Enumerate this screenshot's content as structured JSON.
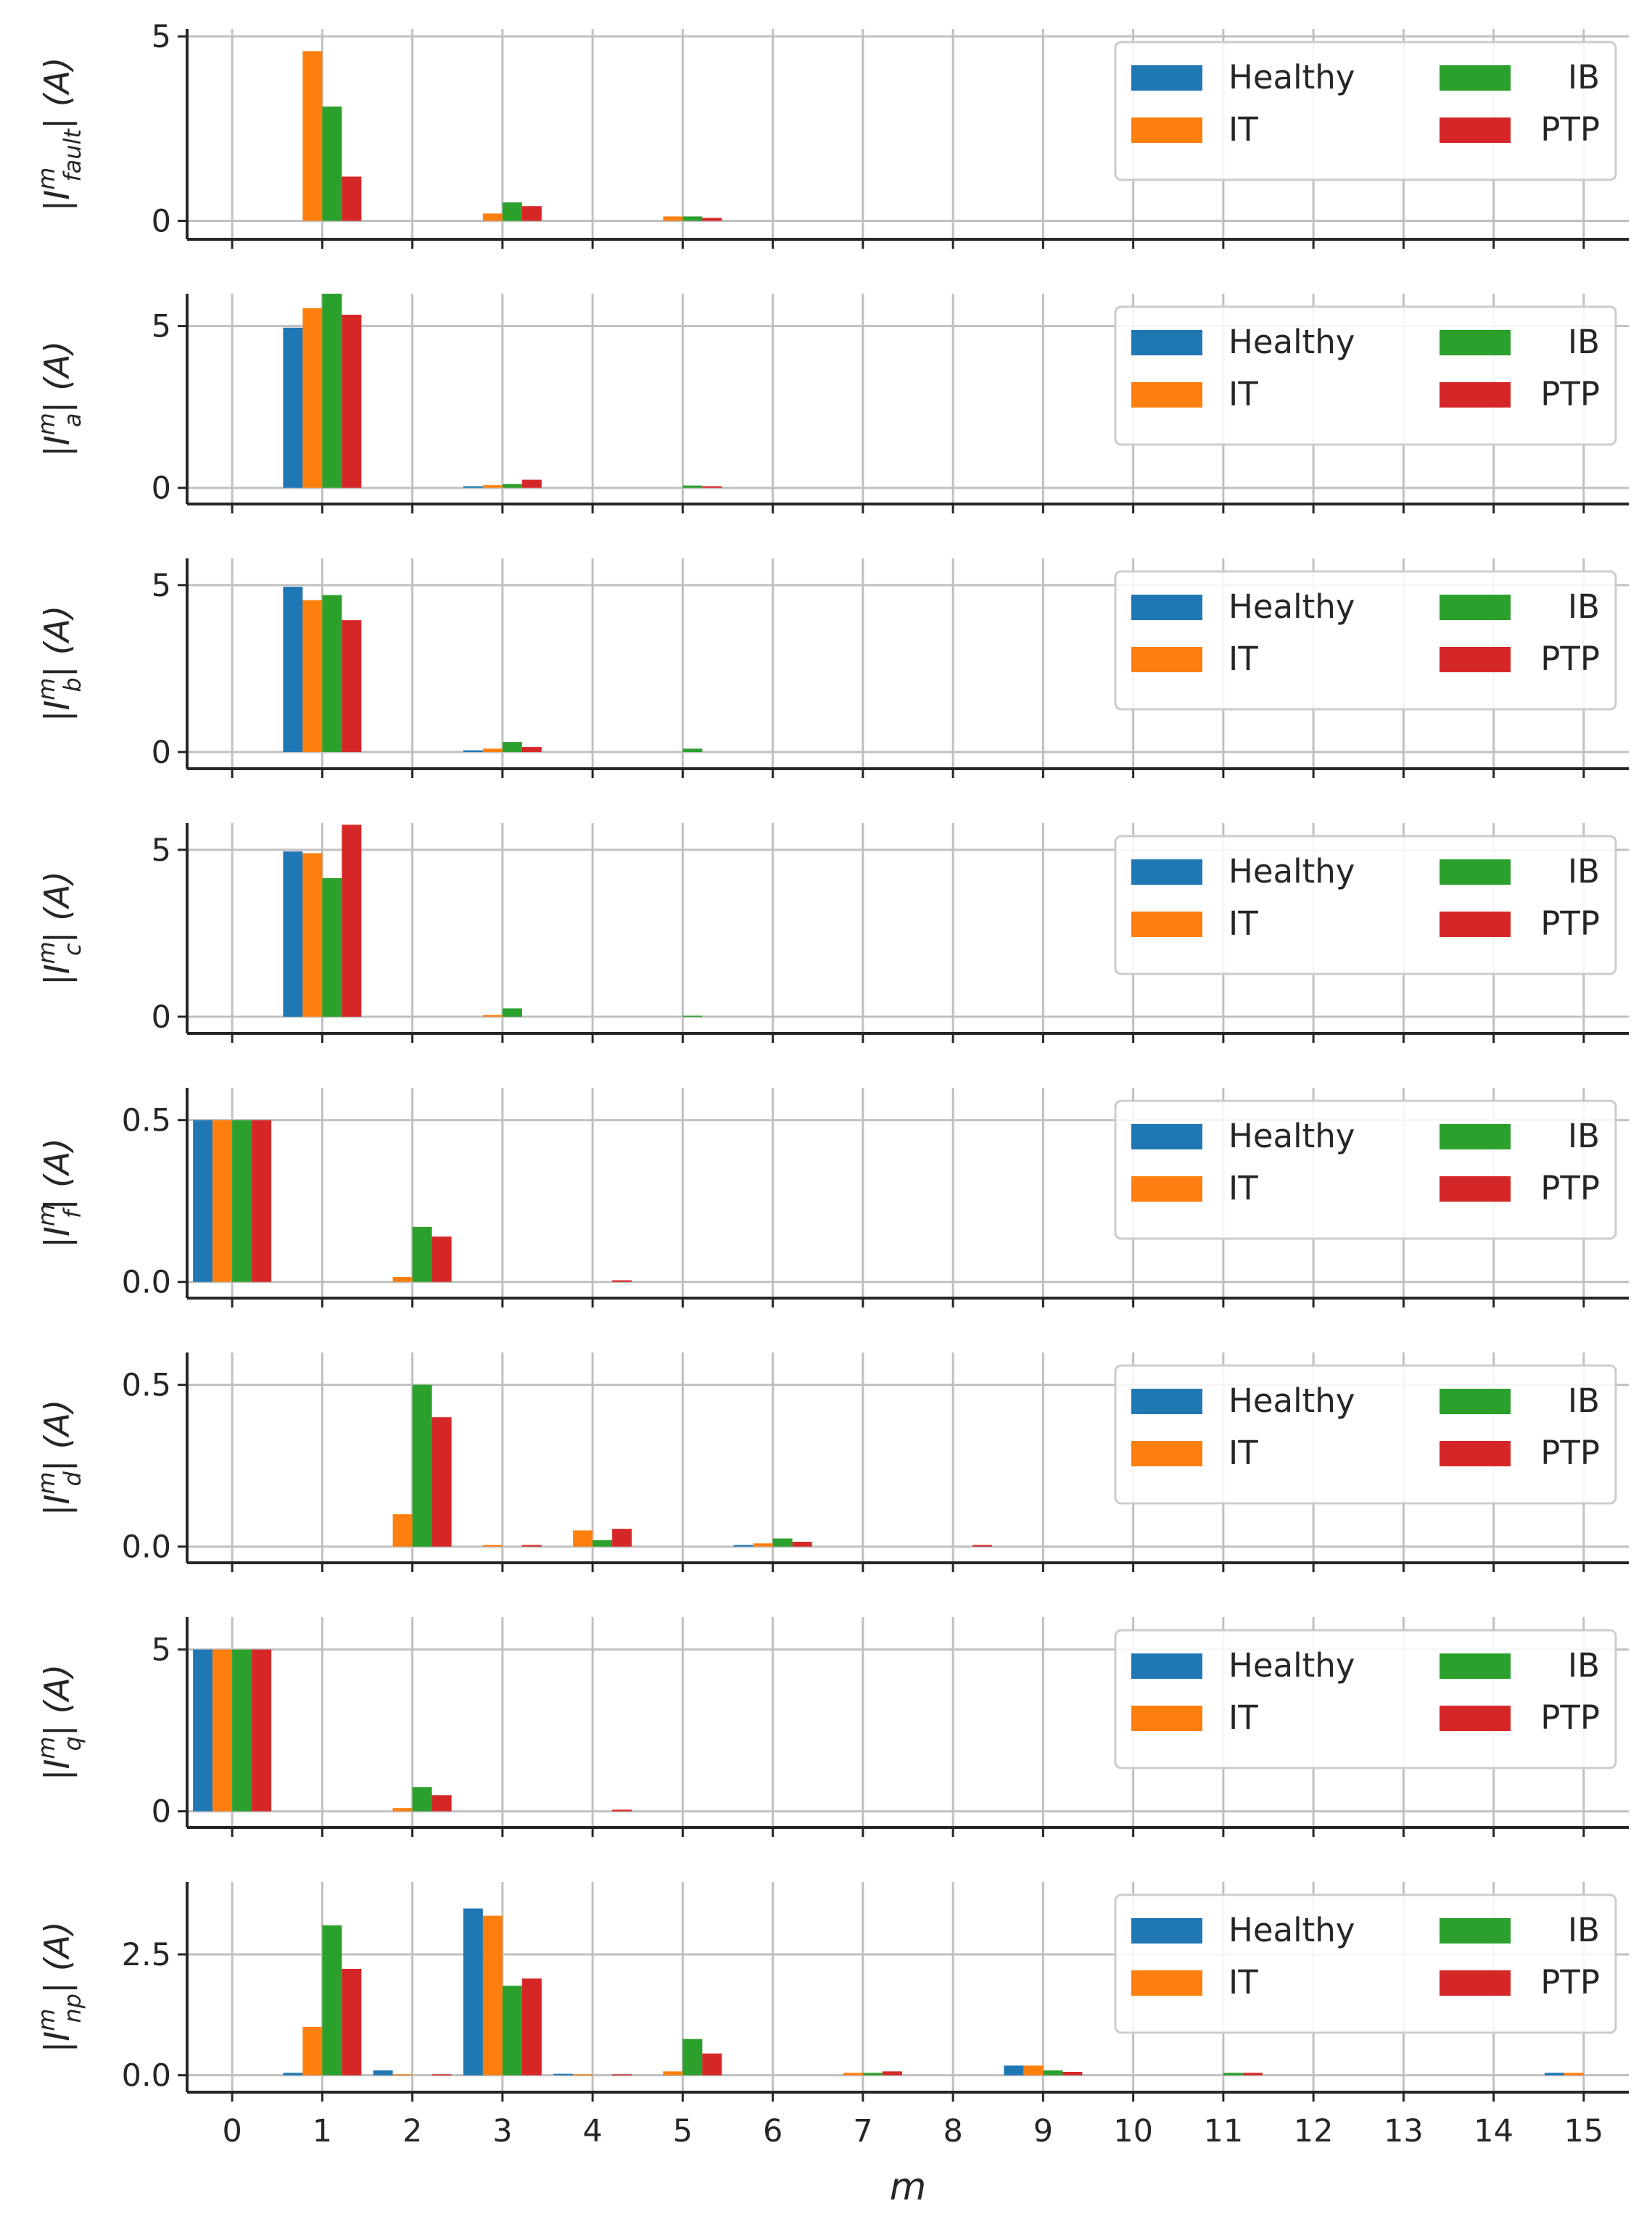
{
  "colors": {
    "Healthy": "#1f77b4",
    "IT": "#ff7f0e",
    "IB": "#2ca02c",
    "PTP": "#d62728",
    "grid": "#c0c0c0",
    "axis": "#262626"
  },
  "chart_data": [
    {
      "type": "bar",
      "ylabel": "|I^m_fault| (A)",
      "ylabel_main": "|I",
      "ylabel_sup": "m",
      "ylabel_sub": "fault",
      "ylabel_tail": "| (A)",
      "ylim": [
        -0.5,
        5.2
      ],
      "yticks": [
        0,
        5
      ],
      "ytick_labels": [
        "0",
        "5"
      ],
      "categories": [
        0,
        1,
        2,
        3,
        4,
        5,
        6,
        7,
        8,
        9,
        10,
        11,
        12,
        13,
        14,
        15
      ],
      "legend": [
        "Healthy",
        "IT",
        "IB",
        "PTP"
      ],
      "legend_position": "top-right",
      "series": [
        {
          "name": "Healthy",
          "values": [
            0,
            0,
            0,
            0,
            0,
            0,
            0,
            0,
            0,
            0,
            0,
            0,
            0,
            0,
            0,
            0
          ]
        },
        {
          "name": "IT",
          "values": [
            0,
            4.6,
            0,
            0.2,
            0,
            0.12,
            0,
            0,
            0,
            0,
            0,
            0,
            0,
            0,
            0,
            0
          ]
        },
        {
          "name": "IB",
          "values": [
            0,
            3.1,
            0,
            0.5,
            0,
            0.12,
            0,
            0,
            0,
            0,
            0,
            0,
            0,
            0,
            0,
            0
          ]
        },
        {
          "name": "PTP",
          "values": [
            0,
            1.2,
            0,
            0.4,
            0,
            0.08,
            0,
            0,
            0,
            0,
            0,
            0,
            0,
            0,
            0,
            0
          ]
        }
      ]
    },
    {
      "type": "bar",
      "ylabel": "|I^m_a| (A)",
      "ylabel_main": "|I",
      "ylabel_sup": "m",
      "ylabel_sub": "a",
      "ylabel_tail": "| (A)",
      "ylim": [
        -0.5,
        6.0
      ],
      "yticks": [
        0,
        5
      ],
      "ytick_labels": [
        "0",
        "5"
      ],
      "categories": [
        0,
        1,
        2,
        3,
        4,
        5,
        6,
        7,
        8,
        9,
        10,
        11,
        12,
        13,
        14,
        15
      ],
      "legend": [
        "Healthy",
        "IT",
        "IB",
        "PTP"
      ],
      "legend_position": "top-right",
      "series": [
        {
          "name": "Healthy",
          "values": [
            0,
            4.95,
            0,
            0.05,
            0,
            0,
            0,
            0,
            0,
            0,
            0,
            0,
            0,
            0,
            0,
            0
          ]
        },
        {
          "name": "IT",
          "values": [
            0,
            5.55,
            0,
            0.08,
            0,
            0,
            0,
            0,
            0,
            0,
            0,
            0,
            0,
            0,
            0,
            0
          ]
        },
        {
          "name": "IB",
          "values": [
            0,
            6.0,
            0,
            0.12,
            0,
            0.07,
            0,
            0,
            0,
            0,
            0,
            0,
            0,
            0,
            0,
            0
          ]
        },
        {
          "name": "PTP",
          "values": [
            0,
            5.35,
            0,
            0.25,
            0,
            0.05,
            0,
            0,
            0,
            0,
            0,
            0,
            0,
            0,
            0,
            0
          ]
        }
      ]
    },
    {
      "type": "bar",
      "ylabel": "|I^m_b| (A)",
      "ylabel_main": "|I",
      "ylabel_sup": "m",
      "ylabel_sub": "b",
      "ylabel_tail": "| (A)",
      "ylim": [
        -0.5,
        5.8
      ],
      "yticks": [
        0,
        5
      ],
      "ytick_labels": [
        "0",
        "5"
      ],
      "categories": [
        0,
        1,
        2,
        3,
        4,
        5,
        6,
        7,
        8,
        9,
        10,
        11,
        12,
        13,
        14,
        15
      ],
      "legend": [
        "Healthy",
        "IT",
        "IB",
        "PTP"
      ],
      "legend_position": "top-right",
      "series": [
        {
          "name": "Healthy",
          "values": [
            0,
            4.95,
            0,
            0.05,
            0,
            0,
            0,
            0,
            0,
            0,
            0,
            0,
            0,
            0,
            0,
            0
          ]
        },
        {
          "name": "IT",
          "values": [
            0,
            4.55,
            0,
            0.1,
            0,
            0,
            0,
            0,
            0,
            0,
            0,
            0,
            0,
            0,
            0,
            0
          ]
        },
        {
          "name": "IB",
          "values": [
            0,
            4.7,
            0,
            0.3,
            0,
            0.1,
            0,
            0,
            0,
            0,
            0,
            0,
            0,
            0,
            0,
            0
          ]
        },
        {
          "name": "PTP",
          "values": [
            0,
            3.95,
            0,
            0.15,
            0,
            0,
            0,
            0,
            0,
            0,
            0,
            0,
            0,
            0,
            0,
            0
          ]
        }
      ]
    },
    {
      "type": "bar",
      "ylabel": "|I^m_c| (A)",
      "ylabel_main": "|I",
      "ylabel_sup": "m",
      "ylabel_sub": "c",
      "ylabel_tail": "| (A)",
      "ylim": [
        -0.5,
        5.8
      ],
      "yticks": [
        0,
        5
      ],
      "ytick_labels": [
        "0",
        "5"
      ],
      "categories": [
        0,
        1,
        2,
        3,
        4,
        5,
        6,
        7,
        8,
        9,
        10,
        11,
        12,
        13,
        14,
        15
      ],
      "legend": [
        "Healthy",
        "IT",
        "IB",
        "PTP"
      ],
      "legend_position": "top-right",
      "series": [
        {
          "name": "Healthy",
          "values": [
            0,
            4.95,
            0,
            0,
            0,
            0,
            0,
            0,
            0,
            0,
            0,
            0,
            0,
            0,
            0,
            0
          ]
        },
        {
          "name": "IT",
          "values": [
            0,
            4.9,
            0,
            0.05,
            0,
            0,
            0,
            0,
            0,
            0,
            0,
            0,
            0,
            0,
            0,
            0
          ]
        },
        {
          "name": "IB",
          "values": [
            0,
            4.15,
            0,
            0.25,
            0,
            0.03,
            0,
            0,
            0,
            0,
            0,
            0,
            0,
            0,
            0,
            0
          ]
        },
        {
          "name": "PTP",
          "values": [
            0,
            5.75,
            0,
            0,
            0,
            0,
            0,
            0,
            0,
            0,
            0,
            0,
            0,
            0,
            0,
            0
          ]
        }
      ]
    },
    {
      "type": "bar",
      "ylabel": "|I^m_f| (A)",
      "ylabel_main": "|I",
      "ylabel_sup": "m",
      "ylabel_sub": "f",
      "ylabel_tail": "| (A)",
      "ylim": [
        -0.05,
        0.6
      ],
      "yticks": [
        0,
        0.5
      ],
      "ytick_labels": [
        "0.0",
        "0.5"
      ],
      "categories": [
        0,
        1,
        2,
        3,
        4,
        5,
        6,
        7,
        8,
        9,
        10,
        11,
        12,
        13,
        14,
        15
      ],
      "legend": [
        "Healthy",
        "IT",
        "IB",
        "PTP"
      ],
      "legend_position": "top-right",
      "series": [
        {
          "name": "Healthy",
          "values": [
            0.5,
            0,
            0,
            0,
            0,
            0,
            0,
            0,
            0,
            0,
            0,
            0,
            0,
            0,
            0,
            0
          ]
        },
        {
          "name": "IT",
          "values": [
            0.5,
            0,
            0.015,
            0,
            0,
            0,
            0,
            0,
            0,
            0,
            0,
            0,
            0,
            0,
            0,
            0
          ]
        },
        {
          "name": "IB",
          "values": [
            0.5,
            0,
            0.17,
            0,
            0,
            0,
            0,
            0,
            0,
            0,
            0,
            0,
            0,
            0,
            0,
            0
          ]
        },
        {
          "name": "PTP",
          "values": [
            0.5,
            0,
            0.14,
            0,
            0.005,
            0,
            0,
            0,
            0,
            0,
            0,
            0,
            0,
            0,
            0,
            0
          ]
        }
      ]
    },
    {
      "type": "bar",
      "ylabel": "|I^m_d| (A)",
      "ylabel_main": "|I",
      "ylabel_sup": "m",
      "ylabel_sub": "d",
      "ylabel_tail": "| (A)",
      "ylim": [
        -0.05,
        0.6
      ],
      "yticks": [
        0,
        0.5
      ],
      "ytick_labels": [
        "0.0",
        "0.5"
      ],
      "categories": [
        0,
        1,
        2,
        3,
        4,
        5,
        6,
        7,
        8,
        9,
        10,
        11,
        12,
        13,
        14,
        15
      ],
      "legend": [
        "Healthy",
        "IT",
        "IB",
        "PTP"
      ],
      "legend_position": "top-right",
      "series": [
        {
          "name": "Healthy",
          "values": [
            0,
            0,
            0,
            0,
            0,
            0,
            0.005,
            0,
            0,
            0,
            0,
            0,
            0,
            0,
            0,
            0
          ]
        },
        {
          "name": "IT",
          "values": [
            0,
            0,
            0.1,
            0.005,
            0.05,
            0,
            0.01,
            0,
            0,
            0,
            0,
            0,
            0,
            0,
            0,
            0
          ]
        },
        {
          "name": "IB",
          "values": [
            0,
            0,
            0.5,
            0,
            0.02,
            0,
            0.025,
            0,
            0,
            0,
            0,
            0,
            0,
            0,
            0,
            0
          ]
        },
        {
          "name": "PTP",
          "values": [
            0,
            0,
            0.4,
            0.005,
            0.055,
            0,
            0.015,
            0,
            0.005,
            0,
            0,
            0,
            0,
            0,
            0,
            0
          ]
        }
      ]
    },
    {
      "type": "bar",
      "ylabel": "|I^m_q| (A)",
      "ylabel_main": "|I",
      "ylabel_sup": "m",
      "ylabel_sub": "q",
      "ylabel_tail": "| (A)",
      "ylim": [
        -0.5,
        6.0
      ],
      "yticks": [
        0,
        5
      ],
      "ytick_labels": [
        "0",
        "5"
      ],
      "categories": [
        0,
        1,
        2,
        3,
        4,
        5,
        6,
        7,
        8,
        9,
        10,
        11,
        12,
        13,
        14,
        15
      ],
      "legend": [
        "Healthy",
        "IT",
        "IB",
        "PTP"
      ],
      "legend_position": "top-right",
      "series": [
        {
          "name": "Healthy",
          "values": [
            5,
            0,
            0,
            0,
            0,
            0,
            0,
            0,
            0,
            0,
            0,
            0,
            0,
            0,
            0,
            0
          ]
        },
        {
          "name": "IT",
          "values": [
            5,
            0,
            0.1,
            0,
            0,
            0,
            0,
            0,
            0,
            0,
            0,
            0,
            0,
            0,
            0,
            0
          ]
        },
        {
          "name": "IB",
          "values": [
            5,
            0,
            0.75,
            0,
            0,
            0,
            0,
            0,
            0,
            0,
            0,
            0,
            0,
            0,
            0,
            0
          ]
        },
        {
          "name": "PTP",
          "values": [
            5,
            0,
            0.5,
            0,
            0.05,
            0,
            0,
            0,
            0,
            0,
            0,
            0,
            0,
            0,
            0,
            0
          ]
        }
      ]
    },
    {
      "type": "bar",
      "ylabel": "|I^m_np| (A)",
      "ylabel_main": "|I",
      "ylabel_sup": "m",
      "ylabel_sub": "np",
      "ylabel_tail": "| (A)",
      "ylim": [
        -0.35,
        4.0
      ],
      "yticks": [
        0,
        2.5
      ],
      "ytick_labels": [
        "0.0",
        "2.5"
      ],
      "xlabel": "m",
      "xtick_labels": [
        "0",
        "1",
        "2",
        "3",
        "4",
        "5",
        "6",
        "7",
        "8",
        "9",
        "10",
        "11",
        "12",
        "13",
        "14",
        "15"
      ],
      "categories": [
        0,
        1,
        2,
        3,
        4,
        5,
        6,
        7,
        8,
        9,
        10,
        11,
        12,
        13,
        14,
        15
      ],
      "legend": [
        "Healthy",
        "IT",
        "IB",
        "PTP"
      ],
      "legend_position": "top-right",
      "series": [
        {
          "name": "Healthy",
          "values": [
            0,
            0.05,
            0.1,
            3.45,
            0.03,
            0,
            0,
            0,
            0,
            0.2,
            0,
            0,
            0,
            0,
            0,
            0.05
          ]
        },
        {
          "name": "IT",
          "values": [
            0,
            1.0,
            0.02,
            3.3,
            0.02,
            0.08,
            0,
            0.05,
            0,
            0.2,
            0,
            0,
            0,
            0,
            0,
            0.05
          ]
        },
        {
          "name": "IB",
          "values": [
            0,
            3.1,
            0,
            1.85,
            0,
            0.75,
            0,
            0.05,
            0,
            0.1,
            0,
            0.05,
            0,
            0,
            0,
            0
          ]
        },
        {
          "name": "PTP",
          "values": [
            0,
            2.2,
            0.02,
            2.0,
            0.02,
            0.45,
            0,
            0.08,
            0,
            0.07,
            0,
            0.05,
            0,
            0,
            0,
            0
          ]
        }
      ]
    }
  ]
}
